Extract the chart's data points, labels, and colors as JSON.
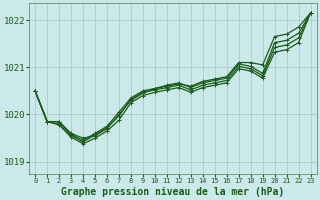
{
  "background_color": "#cce8e8",
  "grid_color": "#aacccc",
  "line_color": "#1a5c1a",
  "marker": "+",
  "title": "Graphe pression niveau de la mer (hPa)",
  "xlim": [
    -0.5,
    23.5
  ],
  "ylim": [
    1018.75,
    1022.35
  ],
  "yticks": [
    1019,
    1020,
    1021,
    1022
  ],
  "xticks": [
    0,
    1,
    2,
    3,
    4,
    5,
    6,
    7,
    8,
    9,
    10,
    11,
    12,
    13,
    14,
    15,
    16,
    17,
    18,
    19,
    20,
    21,
    22,
    23
  ],
  "series": [
    [
      1020.5,
      1019.85,
      1019.85,
      1019.6,
      1019.5,
      1019.55,
      1019.7,
      1020.0,
      1020.3,
      1020.45,
      1020.55,
      1020.6,
      1020.65,
      1020.6,
      1020.7,
      1020.75,
      1020.8,
      1021.1,
      1021.1,
      1021.05,
      1021.65,
      1021.7,
      1021.85,
      1022.15
    ],
    [
      1020.5,
      1019.85,
      1019.85,
      1019.58,
      1019.45,
      1019.6,
      1019.75,
      1020.05,
      1020.35,
      1020.5,
      1020.55,
      1020.62,
      1020.67,
      1020.57,
      1020.67,
      1020.72,
      1020.77,
      1021.07,
      1021.02,
      1020.87,
      1021.52,
      1021.57,
      1021.72,
      1022.15
    ],
    [
      1020.5,
      1019.85,
      1019.8,
      1019.56,
      1019.42,
      1019.57,
      1019.72,
      1019.97,
      1020.32,
      1020.47,
      1020.52,
      1020.57,
      1020.62,
      1020.52,
      1020.62,
      1020.67,
      1020.72,
      1021.02,
      1020.97,
      1020.82,
      1021.42,
      1021.47,
      1021.62,
      1022.15
    ],
    [
      1020.5,
      1019.85,
      1019.78,
      1019.52,
      1019.38,
      1019.5,
      1019.65,
      1019.88,
      1020.25,
      1020.4,
      1020.47,
      1020.52,
      1020.57,
      1020.47,
      1020.57,
      1020.62,
      1020.67,
      1020.97,
      1020.92,
      1020.77,
      1021.32,
      1021.37,
      1021.52,
      1022.15
    ]
  ]
}
